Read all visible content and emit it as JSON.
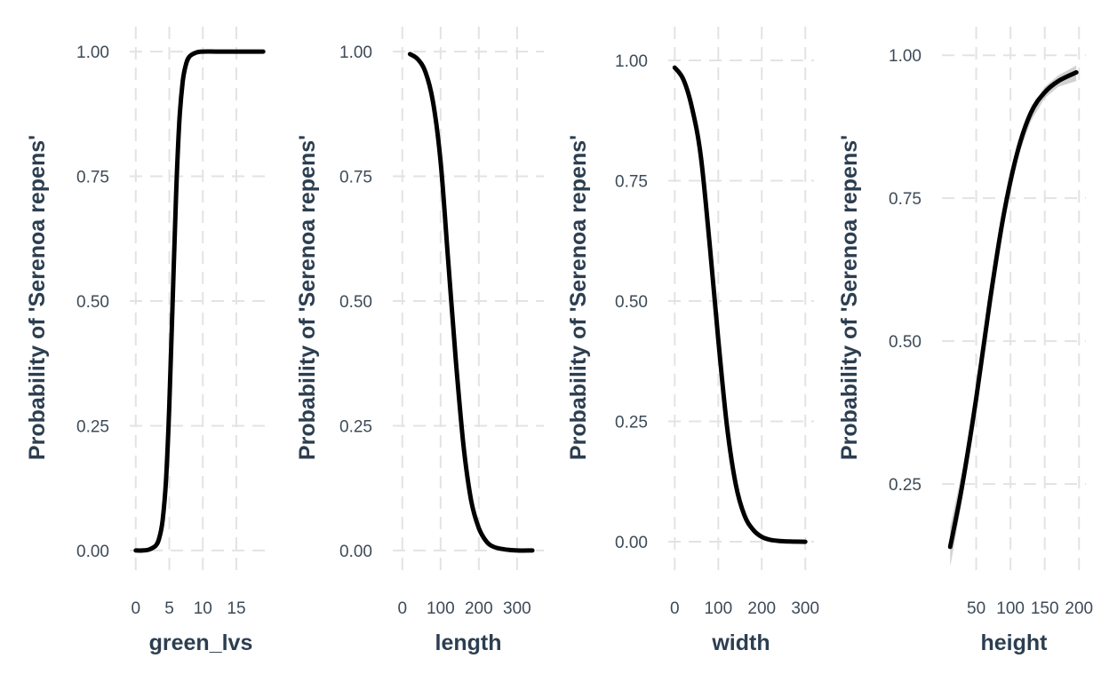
{
  "chart_data": [
    {
      "type": "line",
      "xlabel": "green_lvs",
      "ylabel": "Probability of 'Serenoa repens'",
      "x_ticks": [
        0,
        5,
        10,
        15
      ],
      "y_ticks": [
        0.0,
        0.25,
        0.5,
        0.75,
        1.0
      ],
      "y_tick_labels": [
        "0.00",
        "0.25",
        "0.50",
        "0.75",
        "1.00"
      ],
      "xlim": [
        -0.9,
        20.3
      ],
      "ylim": [
        -0.05,
        1.05
      ],
      "grid": true,
      "x": [
        0,
        1,
        2,
        3,
        3.5,
        4,
        4.5,
        5,
        5.5,
        6,
        6.5,
        7,
        7.5,
        8,
        9,
        10,
        12,
        15,
        19
      ],
      "y": [
        0.0,
        0.0,
        0.002,
        0.01,
        0.025,
        0.06,
        0.14,
        0.29,
        0.5,
        0.71,
        0.86,
        0.94,
        0.975,
        0.99,
        0.998,
        1.0,
        1.0,
        1.0,
        1.0
      ]
    },
    {
      "type": "line",
      "xlabel": "length",
      "ylabel": "Probability of 'Serenoa repens'",
      "x_ticks": [
        0,
        100,
        200,
        300
      ],
      "y_ticks": [
        0.0,
        0.25,
        0.5,
        0.75,
        1.0
      ],
      "y_tick_labels": [
        "0.00",
        "0.25",
        "0.50",
        "0.75",
        "1.00"
      ],
      "xlim": [
        -25,
        370
      ],
      "ylim": [
        -0.05,
        1.05
      ],
      "grid": true,
      "x": [
        20,
        40,
        60,
        80,
        100,
        120,
        140,
        160,
        180,
        200,
        220,
        240,
        270,
        300,
        340
      ],
      "y": [
        0.995,
        0.985,
        0.96,
        0.9,
        0.78,
        0.58,
        0.38,
        0.21,
        0.1,
        0.045,
        0.018,
        0.007,
        0.002,
        0.0,
        0.0
      ]
    },
    {
      "type": "line",
      "xlabel": "width",
      "ylabel": "Probability of 'Serenoa repens'",
      "x_ticks": [
        0,
        100,
        200,
        300
      ],
      "y_ticks": [
        0.0,
        0.25,
        0.5,
        0.75,
        1.0
      ],
      "y_tick_labels": [
        "0.00",
        "0.25",
        "0.50",
        "0.75",
        "1.00"
      ],
      "xlim": [
        -15,
        320
      ],
      "ylim": [
        -0.07,
        1.07
      ],
      "grid": true,
      "x": [
        0,
        20,
        40,
        60,
        80,
        100,
        120,
        140,
        160,
        180,
        200,
        220,
        250,
        300
      ],
      "y": [
        0.985,
        0.96,
        0.9,
        0.8,
        0.62,
        0.42,
        0.24,
        0.12,
        0.055,
        0.025,
        0.01,
        0.004,
        0.001,
        0.0
      ]
    },
    {
      "type": "line",
      "xlabel": "height",
      "ylabel": "Probability of 'Serenoa repens'",
      "x_ticks": [
        50,
        100,
        150,
        200
      ],
      "x_tick_labels": [
        "50",
        "100",
        "150",
        "200"
      ],
      "y_ticks": [
        0.25,
        0.5,
        0.75,
        1.0
      ],
      "y_tick_labels": [
        "0.25",
        "0.50",
        "0.75",
        "1.00"
      ],
      "xlim": [
        0,
        210
      ],
      "ylim": [
        0.09,
        1.05
      ],
      "grid": true,
      "confidence_band": true,
      "x": [
        12,
        30,
        50,
        70,
        90,
        110,
        130,
        150,
        170,
        196
      ],
      "y": [
        0.14,
        0.25,
        0.4,
        0.57,
        0.72,
        0.83,
        0.9,
        0.935,
        0.955,
        0.97
      ],
      "lower": [
        0.105,
        0.225,
        0.385,
        0.56,
        0.71,
        0.82,
        0.885,
        0.925,
        0.945,
        0.955
      ],
      "upper": [
        0.175,
        0.275,
        0.415,
        0.58,
        0.73,
        0.84,
        0.905,
        0.945,
        0.965,
        0.982
      ]
    }
  ]
}
